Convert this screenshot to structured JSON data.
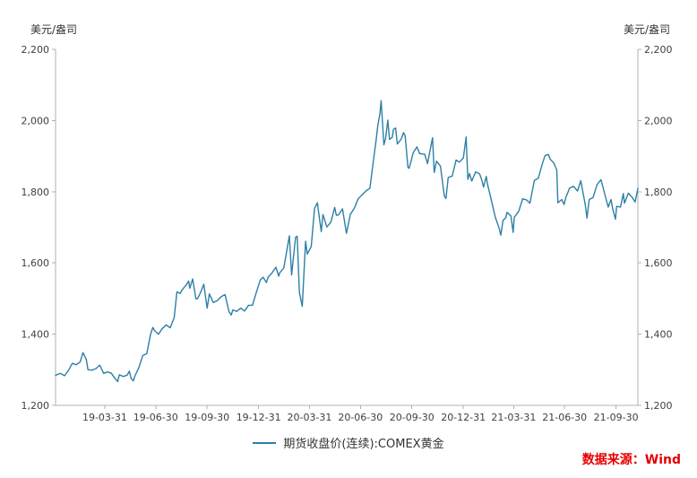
{
  "units": {
    "left": "美元/盎司",
    "right": "美元/盎司"
  },
  "legend": {
    "label": "期货收盘价(连续):COMEX黄金"
  },
  "source": {
    "label": "数据来源：Wind"
  },
  "colors": {
    "line": "#2e7fa5",
    "axis": "#b0b0b0",
    "tick_text": "#404040",
    "source_text": "#e60000"
  },
  "chart_data": {
    "type": "line",
    "title": "",
    "ylabel_left": "美元/盎司",
    "ylabel_right": "美元/盎司",
    "ylim": [
      1200,
      2200
    ],
    "yticks": [
      1200,
      1400,
      1600,
      1800,
      2000,
      2200
    ],
    "ytick_format": "thousands-comma",
    "xticks": [
      "19-03-31",
      "19-06-30",
      "19-09-30",
      "19-12-31",
      "20-03-31",
      "20-06-30",
      "20-09-30",
      "20-12-31",
      "21-03-31",
      "21-06-30",
      "21-09-30"
    ],
    "grid": false,
    "legend_position": "bottom",
    "series": [
      {
        "name": "期货收盘价(连续):COMEX黄金",
        "points": [
          [
            "2019-01-02",
            1284
          ],
          [
            "2019-01-04",
            1286
          ],
          [
            "2019-01-11",
            1290
          ],
          [
            "2019-01-18",
            1283
          ],
          [
            "2019-01-25",
            1298
          ],
          [
            "2019-02-01",
            1318
          ],
          [
            "2019-02-08",
            1314
          ],
          [
            "2019-02-15",
            1322
          ],
          [
            "2019-02-20",
            1348
          ],
          [
            "2019-02-26",
            1329
          ],
          [
            "2019-03-01",
            1300
          ],
          [
            "2019-03-08",
            1299
          ],
          [
            "2019-03-15",
            1303
          ],
          [
            "2019-03-22",
            1313
          ],
          [
            "2019-03-29",
            1290
          ],
          [
            "2019-04-05",
            1294
          ],
          [
            "2019-04-12",
            1290
          ],
          [
            "2019-04-18",
            1276
          ],
          [
            "2019-04-23",
            1267
          ],
          [
            "2019-04-26",
            1286
          ],
          [
            "2019-05-03",
            1281
          ],
          [
            "2019-05-10",
            1285
          ],
          [
            "2019-05-14",
            1296
          ],
          [
            "2019-05-17",
            1276
          ],
          [
            "2019-05-21",
            1269
          ],
          [
            "2019-05-24",
            1283
          ],
          [
            "2019-05-31",
            1306
          ],
          [
            "2019-06-07",
            1340
          ],
          [
            "2019-06-14",
            1345
          ],
          [
            "2019-06-21",
            1400
          ],
          [
            "2019-06-25",
            1419
          ],
          [
            "2019-06-28",
            1410
          ],
          [
            "2019-07-05",
            1400
          ],
          [
            "2019-07-12",
            1416
          ],
          [
            "2019-07-19",
            1426
          ],
          [
            "2019-07-26",
            1418
          ],
          [
            "2019-08-02",
            1446
          ],
          [
            "2019-08-07",
            1519
          ],
          [
            "2019-08-13",
            1514
          ],
          [
            "2019-08-16",
            1524
          ],
          [
            "2019-08-23",
            1537
          ],
          [
            "2019-08-28",
            1549
          ],
          [
            "2019-08-30",
            1529
          ],
          [
            "2019-09-04",
            1555
          ],
          [
            "2019-09-10",
            1499
          ],
          [
            "2019-09-13",
            1500
          ],
          [
            "2019-09-18",
            1516
          ],
          [
            "2019-09-24",
            1540
          ],
          [
            "2019-09-27",
            1507
          ],
          [
            "2019-09-30",
            1473
          ],
          [
            "2019-10-04",
            1513
          ],
          [
            "2019-10-11",
            1489
          ],
          [
            "2019-10-18",
            1494
          ],
          [
            "2019-10-25",
            1505
          ],
          [
            "2019-11-01",
            1511
          ],
          [
            "2019-11-08",
            1463
          ],
          [
            "2019-11-12",
            1454
          ],
          [
            "2019-11-15",
            1468
          ],
          [
            "2019-11-22",
            1464
          ],
          [
            "2019-11-29",
            1473
          ],
          [
            "2019-12-06",
            1465
          ],
          [
            "2019-12-13",
            1481
          ],
          [
            "2019-12-20",
            1481
          ],
          [
            "2019-12-27",
            1518
          ],
          [
            "2020-01-03",
            1552
          ],
          [
            "2020-01-08",
            1560
          ],
          [
            "2020-01-14",
            1545
          ],
          [
            "2020-01-17",
            1560
          ],
          [
            "2020-01-24",
            1572
          ],
          [
            "2020-01-31",
            1588
          ],
          [
            "2020-02-05",
            1563
          ],
          [
            "2020-02-07",
            1573
          ],
          [
            "2020-02-14",
            1586
          ],
          [
            "2020-02-21",
            1649
          ],
          [
            "2020-02-24",
            1676
          ],
          [
            "2020-02-28",
            1566
          ],
          [
            "2020-03-06",
            1672
          ],
          [
            "2020-03-09",
            1675
          ],
          [
            "2020-03-13",
            1517
          ],
          [
            "2020-03-18",
            1478
          ],
          [
            "2020-03-24",
            1661
          ],
          [
            "2020-03-27",
            1625
          ],
          [
            "2020-04-03",
            1646
          ],
          [
            "2020-04-09",
            1753
          ],
          [
            "2020-04-14",
            1769
          ],
          [
            "2020-04-21",
            1688
          ],
          [
            "2020-04-24",
            1736
          ],
          [
            "2020-05-01",
            1701
          ],
          [
            "2020-05-08",
            1714
          ],
          [
            "2020-05-15",
            1756
          ],
          [
            "2020-05-18",
            1734
          ],
          [
            "2020-05-22",
            1735
          ],
          [
            "2020-05-29",
            1752
          ],
          [
            "2020-06-05",
            1683
          ],
          [
            "2020-06-12",
            1737
          ],
          [
            "2020-06-19",
            1753
          ],
          [
            "2020-06-26",
            1780
          ],
          [
            "2020-07-02",
            1790
          ],
          [
            "2020-07-10",
            1802
          ],
          [
            "2020-07-17",
            1810
          ],
          [
            "2020-07-24",
            1897
          ],
          [
            "2020-07-28",
            1944
          ],
          [
            "2020-07-31",
            1986
          ],
          [
            "2020-08-04",
            2021
          ],
          [
            "2020-08-06",
            2056
          ],
          [
            "2020-08-11",
            1932
          ],
          [
            "2020-08-14",
            1950
          ],
          [
            "2020-08-18",
            2001
          ],
          [
            "2020-08-21",
            1947
          ],
          [
            "2020-08-26",
            1953
          ],
          [
            "2020-08-28",
            1975
          ],
          [
            "2020-09-01",
            1979
          ],
          [
            "2020-09-04",
            1934
          ],
          [
            "2020-09-11",
            1948
          ],
          [
            "2020-09-15",
            1966
          ],
          [
            "2020-09-18",
            1957
          ],
          [
            "2020-09-23",
            1868
          ],
          [
            "2020-09-25",
            1866
          ],
          [
            "2020-09-28",
            1882
          ],
          [
            "2020-10-02",
            1908
          ],
          [
            "2020-10-09",
            1926
          ],
          [
            "2020-10-14",
            1907
          ],
          [
            "2020-10-23",
            1905
          ],
          [
            "2020-10-28",
            1879
          ],
          [
            "2020-11-06",
            1952
          ],
          [
            "2020-11-09",
            1854
          ],
          [
            "2020-11-13",
            1886
          ],
          [
            "2020-11-20",
            1872
          ],
          [
            "2020-11-27",
            1788
          ],
          [
            "2020-11-30",
            1781
          ],
          [
            "2020-12-04",
            1840
          ],
          [
            "2020-12-11",
            1844
          ],
          [
            "2020-12-18",
            1889
          ],
          [
            "2020-12-24",
            1883
          ],
          [
            "2020-12-31",
            1895
          ],
          [
            "2021-01-05",
            1954
          ],
          [
            "2021-01-08",
            1835
          ],
          [
            "2021-01-11",
            1851
          ],
          [
            "2021-01-15",
            1830
          ],
          [
            "2021-01-22",
            1856
          ],
          [
            "2021-01-29",
            1850
          ],
          [
            "2021-02-02",
            1833
          ],
          [
            "2021-02-05",
            1813
          ],
          [
            "2021-02-10",
            1843
          ],
          [
            "2021-02-12",
            1823
          ],
          [
            "2021-02-19",
            1777
          ],
          [
            "2021-02-26",
            1729
          ],
          [
            "2021-03-05",
            1698
          ],
          [
            "2021-03-08",
            1678
          ],
          [
            "2021-03-12",
            1720
          ],
          [
            "2021-03-17",
            1727
          ],
          [
            "2021-03-19",
            1742
          ],
          [
            "2021-03-26",
            1732
          ],
          [
            "2021-03-30",
            1686
          ],
          [
            "2021-04-01",
            1728
          ],
          [
            "2021-04-09",
            1745
          ],
          [
            "2021-04-16",
            1780
          ],
          [
            "2021-04-23",
            1777
          ],
          [
            "2021-04-29",
            1768
          ],
          [
            "2021-05-07",
            1832
          ],
          [
            "2021-05-14",
            1838
          ],
          [
            "2021-05-21",
            1877
          ],
          [
            "2021-05-26",
            1901
          ],
          [
            "2021-06-01",
            1905
          ],
          [
            "2021-06-04",
            1892
          ],
          [
            "2021-06-11",
            1880
          ],
          [
            "2021-06-16",
            1861
          ],
          [
            "2021-06-18",
            1769
          ],
          [
            "2021-06-25",
            1778
          ],
          [
            "2021-06-29",
            1764
          ],
          [
            "2021-07-02",
            1783
          ],
          [
            "2021-07-09",
            1810
          ],
          [
            "2021-07-16",
            1815
          ],
          [
            "2021-07-23",
            1802
          ],
          [
            "2021-07-29",
            1831
          ],
          [
            "2021-08-06",
            1763
          ],
          [
            "2021-08-09",
            1726
          ],
          [
            "2021-08-13",
            1778
          ],
          [
            "2021-08-20",
            1784
          ],
          [
            "2021-08-27",
            1820
          ],
          [
            "2021-09-03",
            1834
          ],
          [
            "2021-09-10",
            1792
          ],
          [
            "2021-09-16",
            1757
          ],
          [
            "2021-09-21",
            1778
          ],
          [
            "2021-09-24",
            1752
          ],
          [
            "2021-09-29",
            1723
          ],
          [
            "2021-10-01",
            1759
          ],
          [
            "2021-10-08",
            1757
          ],
          [
            "2021-10-13",
            1795
          ],
          [
            "2021-10-15",
            1768
          ],
          [
            "2021-10-22",
            1796
          ],
          [
            "2021-10-29",
            1784
          ],
          [
            "2021-11-03",
            1771
          ],
          [
            "2021-11-08",
            1809
          ]
        ]
      }
    ]
  }
}
